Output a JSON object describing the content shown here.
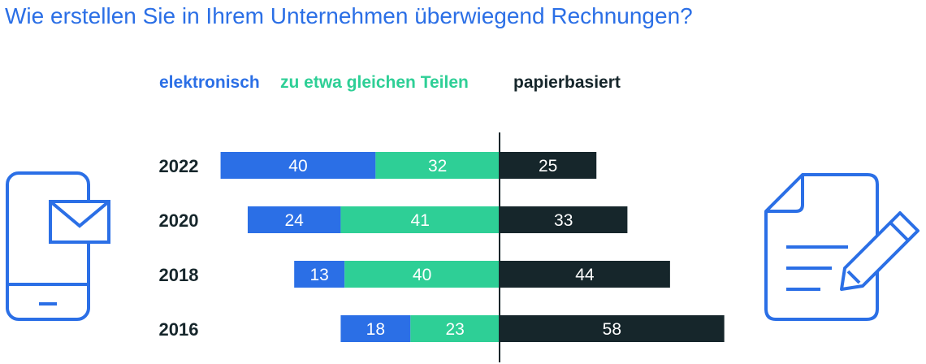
{
  "title": "Wie erstellen Sie in Ihrem Unternehmen überwiegend Rechnungen?",
  "legend": [
    {
      "label": "elektronisch",
      "color": "#2b6fe6"
    },
    {
      "label": "zu etwa gleichen Teilen",
      "color": "#2ecf96"
    },
    {
      "label": "papierbasiert",
      "color": "#16262b"
    }
  ],
  "icons": {
    "left": "smartphone-mail-icon",
    "right": "document-pen-icon"
  },
  "chart_data": {
    "type": "bar",
    "orientation": "horizontal-stacked-diverging",
    "categories": [
      "2022",
      "2020",
      "2018",
      "2016"
    ],
    "series": [
      {
        "name": "elektronisch",
        "values": [
          40,
          24,
          13,
          18
        ],
        "color": "#2b6fe6"
      },
      {
        "name": "zu etwa gleichen Teilen",
        "values": [
          32,
          41,
          40,
          23
        ],
        "color": "#2ecf96"
      },
      {
        "name": "papierbasiert",
        "values": [
          25,
          33,
          44,
          58
        ],
        "color": "#16262b"
      }
    ]
  }
}
